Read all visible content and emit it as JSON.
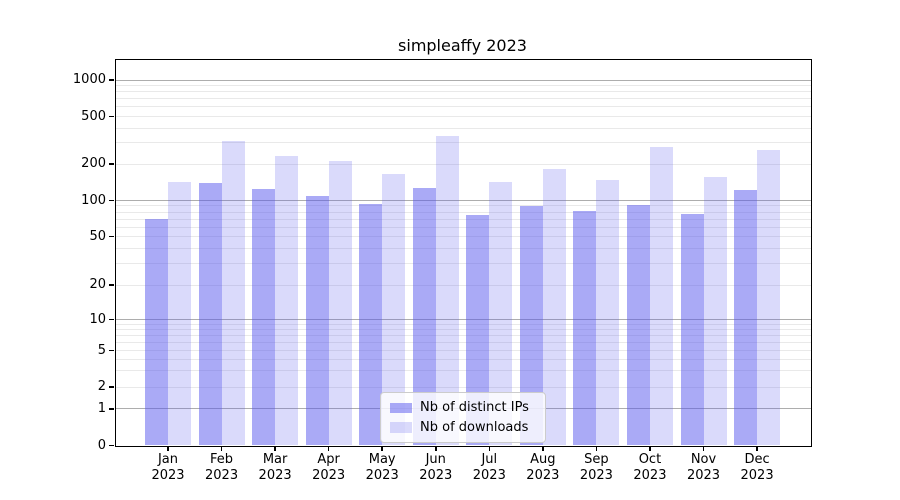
{
  "title": "simpleaffy 2023",
  "chart_data": {
    "type": "bar",
    "title": "simpleaffy 2023",
    "categories": [
      "Jan 2023",
      "Feb 2023",
      "Mar 2023",
      "Apr 2023",
      "May 2023",
      "Jun 2023",
      "Jul 2023",
      "Aug 2023",
      "Sep 2023",
      "Oct 2023",
      "Nov 2023",
      "Dec 2023"
    ],
    "series": [
      {
        "name": "Nb of distinct IPs",
        "color": "rgba(85,85,238,0.5)",
        "values": [
          70,
          140,
          124,
          108,
          94,
          126,
          76,
          90,
          82,
          92,
          77,
          122
        ]
      },
      {
        "name": "Nb of downloads",
        "color": "rgba(85,85,238,0.22)",
        "values": [
          143,
          310,
          235,
          210,
          166,
          340,
          142,
          183,
          147,
          275,
          156,
          260
        ]
      }
    ],
    "xlabel": "",
    "ylabel": "",
    "yscale": "symlog",
    "yticks": [
      0,
      1,
      2,
      5,
      10,
      20,
      50,
      100,
      200,
      500,
      1000
    ],
    "ylim": [
      0,
      1500
    ],
    "grid": true,
    "legend_position": "lower center",
    "colors": {
      "distinct_ips_fill": "#a9a9f6",
      "downloads_fill": "#d9d9f8",
      "major_grid": "#adadad",
      "minor_grid": "#e9e9e9",
      "axis": "#000000"
    }
  }
}
